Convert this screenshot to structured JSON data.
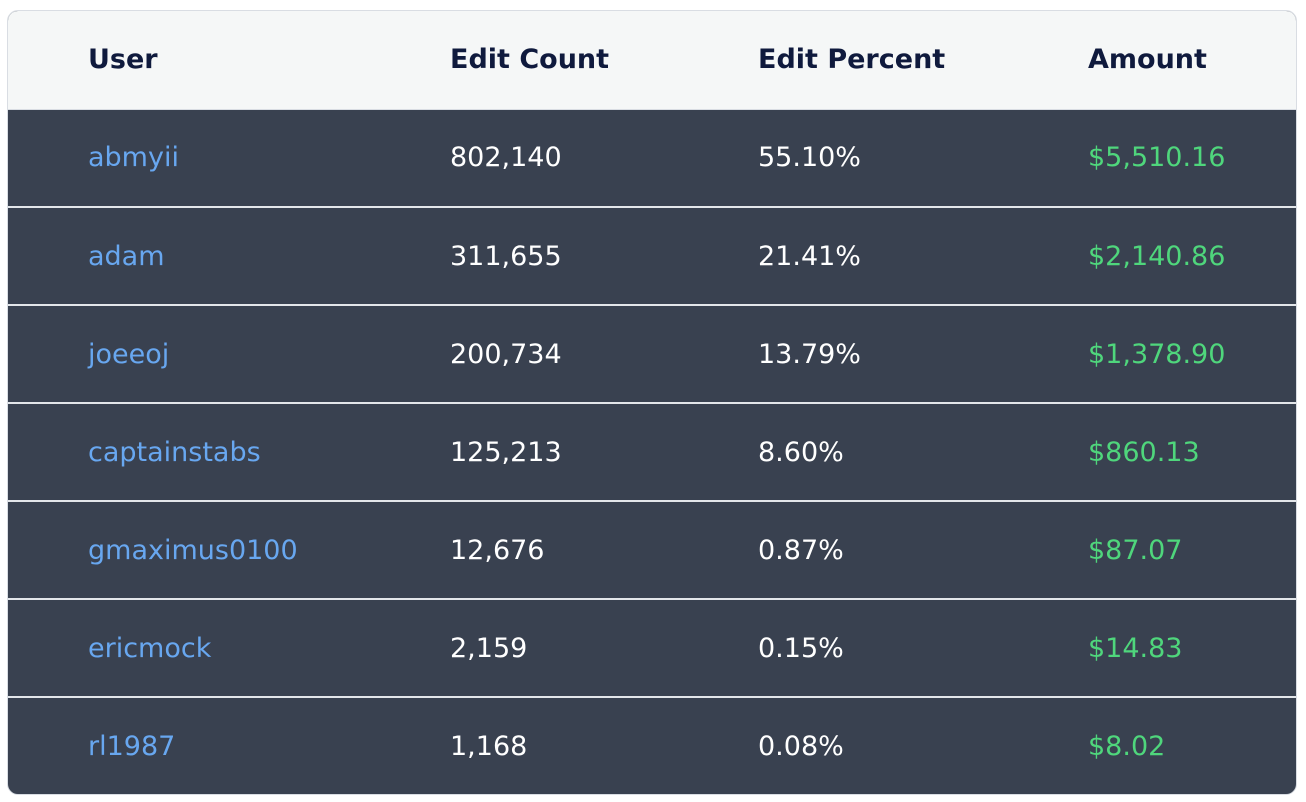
{
  "table": {
    "headers": {
      "user": "User",
      "edit_count": "Edit Count",
      "edit_percent": "Edit Percent",
      "amount": "Amount"
    },
    "rows": [
      {
        "user": "abmyii",
        "edit_count": "802,140",
        "edit_percent": "55.10%",
        "amount": "$5,510.16"
      },
      {
        "user": "adam",
        "edit_count": "311,655",
        "edit_percent": "21.41%",
        "amount": "$2,140.86"
      },
      {
        "user": "joeeoj",
        "edit_count": "200,734",
        "edit_percent": "13.79%",
        "amount": "$1,378.90"
      },
      {
        "user": "captainstabs",
        "edit_count": "125,213",
        "edit_percent": "8.60%",
        "amount": "$860.13"
      },
      {
        "user": "gmaximus0100",
        "edit_count": "12,676",
        "edit_percent": "0.87%",
        "amount": "$87.07"
      },
      {
        "user": "ericmock",
        "edit_count": "2,159",
        "edit_percent": "0.15%",
        "amount": "$14.83"
      },
      {
        "user": "rl1987",
        "edit_count": "1,168",
        "edit_percent": "0.08%",
        "amount": "$8.02"
      }
    ]
  },
  "colors": {
    "header_bg": "#f5f7f7",
    "header_text": "#0f1a3d",
    "row_bg": "#394150",
    "link": "#68a7f0",
    "amount": "#4fd67c",
    "value_text": "#ffffff"
  }
}
